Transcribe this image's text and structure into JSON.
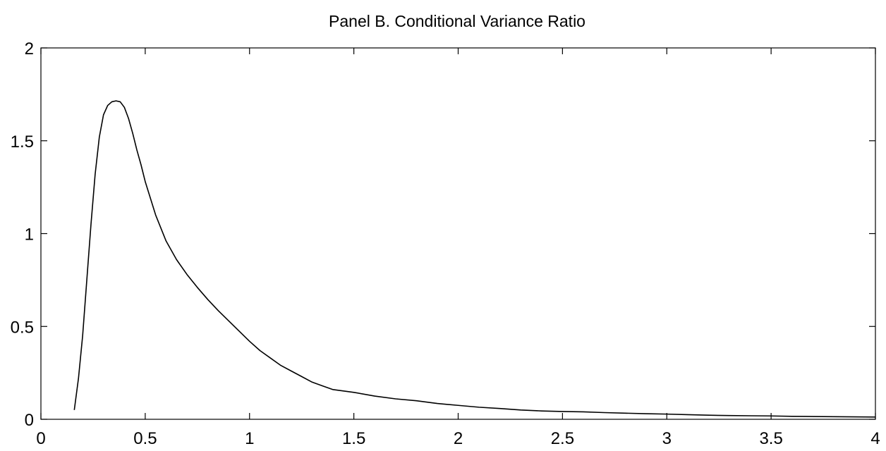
{
  "chart_data": {
    "type": "line",
    "title": "Panel B.  Conditional Variance Ratio",
    "xlabel": "",
    "ylabel": "",
    "xlim": [
      0,
      4
    ],
    "ylim": [
      0,
      2
    ],
    "grid": false,
    "xticks": [
      0,
      0.5,
      1,
      1.5,
      2,
      2.5,
      3,
      3.5,
      4
    ],
    "xtick_labels": [
      "0",
      "0.5",
      "1",
      "1.5",
      "2",
      "2.5",
      "3",
      "3.5",
      "4"
    ],
    "yticks": [
      0,
      0.5,
      1,
      1.5,
      2
    ],
    "ytick_labels": [
      "0",
      "0.5",
      "1",
      "1.5",
      "2"
    ],
    "line_color": "#000000",
    "series": [
      {
        "x": [
          0.16,
          0.18,
          0.2,
          0.22,
          0.24,
          0.26,
          0.28,
          0.3,
          0.32,
          0.34,
          0.36,
          0.38,
          0.4,
          0.42,
          0.44,
          0.46,
          0.48,
          0.5,
          0.55,
          0.6,
          0.65,
          0.7,
          0.75,
          0.8,
          0.85,
          0.9,
          0.95,
          1.0,
          1.05,
          1.1,
          1.15,
          1.2,
          1.25,
          1.3,
          1.35,
          1.4,
          1.5,
          1.6,
          1.7,
          1.8,
          1.9,
          2.0,
          2.1,
          2.2,
          2.3,
          2.4,
          2.5,
          2.6,
          2.7,
          2.8,
          2.9,
          3.0,
          3.1,
          3.2,
          3.3,
          3.4,
          3.5,
          3.6,
          3.7,
          3.8,
          3.9,
          4.0
        ],
        "y": [
          0.05,
          0.22,
          0.45,
          0.75,
          1.05,
          1.32,
          1.52,
          1.64,
          1.69,
          1.71,
          1.715,
          1.71,
          1.68,
          1.62,
          1.54,
          1.45,
          1.37,
          1.28,
          1.1,
          0.96,
          0.86,
          0.78,
          0.71,
          0.645,
          0.585,
          0.53,
          0.475,
          0.42,
          0.37,
          0.33,
          0.29,
          0.26,
          0.23,
          0.2,
          0.18,
          0.16,
          0.145,
          0.125,
          0.11,
          0.1,
          0.085,
          0.075,
          0.065,
          0.058,
          0.05,
          0.045,
          0.042,
          0.04,
          0.036,
          0.033,
          0.03,
          0.028,
          0.025,
          0.022,
          0.02,
          0.019,
          0.018,
          0.016,
          0.015,
          0.014,
          0.013,
          0.012
        ]
      }
    ]
  }
}
